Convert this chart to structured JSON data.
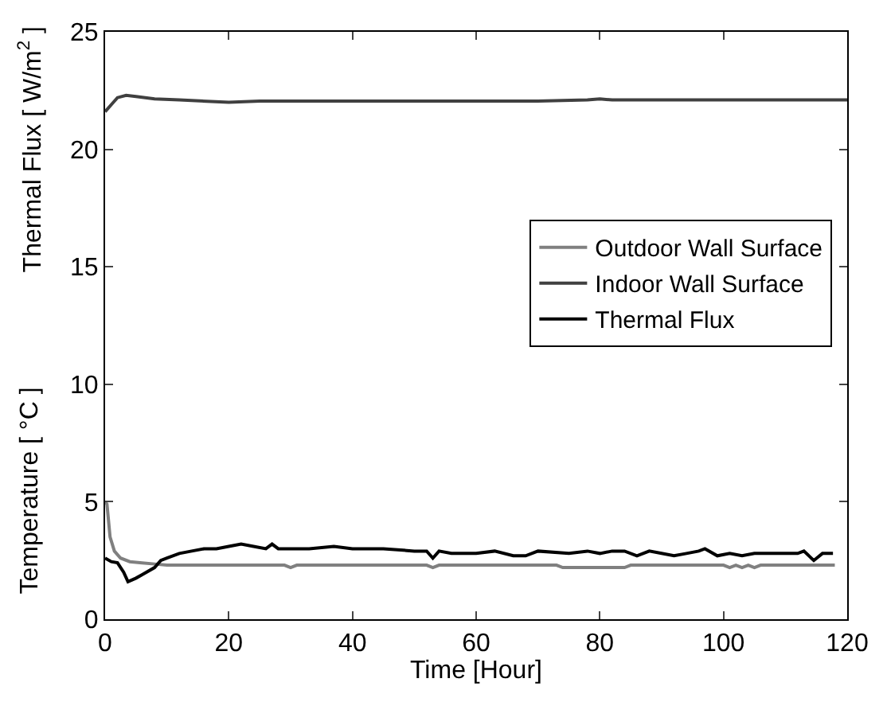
{
  "chart_data": {
    "type": "line",
    "xlabel": "Time [Hour]",
    "ylabel": "Thermal Flux [ W/m$^{2}$ ]",
    "annotations": [
      "Temperature [ °C ]"
    ],
    "xlim": [
      0,
      120
    ],
    "xticks": [
      0,
      20,
      40,
      60,
      80,
      100,
      120
    ],
    "ylim": [
      0,
      25
    ],
    "yticks": [
      0,
      5,
      10,
      15,
      20,
      25
    ],
    "legend": "right",
    "line_style": "solid",
    "marker": "none",
    "series": [
      {
        "name": "Outdoor Wall Surface",
        "color": "#808080",
        "x": [
          0,
          0.3,
          0.8,
          1.5,
          2.5,
          4,
          6,
          8,
          10,
          29,
          30,
          31,
          52,
          53,
          54,
          73,
          74,
          84,
          85,
          100,
          101,
          102,
          103,
          104,
          105,
          106,
          118
        ],
        "values": [
          5.0,
          4.9,
          3.5,
          2.9,
          2.6,
          2.45,
          2.4,
          2.35,
          2.3,
          2.3,
          2.2,
          2.3,
          2.3,
          2.2,
          2.3,
          2.3,
          2.2,
          2.2,
          2.3,
          2.3,
          2.2,
          2.3,
          2.2,
          2.3,
          2.2,
          2.3,
          2.3
        ]
      },
      {
        "name": "Indoor Wall Surface",
        "color": "#404040",
        "x": [
          0,
          1,
          2,
          3.4,
          5,
          8,
          12,
          20,
          25,
          30,
          40,
          50,
          60,
          70,
          78,
          80,
          82,
          90,
          100,
          110,
          120
        ],
        "values": [
          21.6,
          21.9,
          22.2,
          22.3,
          22.25,
          22.15,
          22.1,
          22.0,
          22.05,
          22.05,
          22.05,
          22.05,
          22.05,
          22.05,
          22.1,
          22.15,
          22.1,
          22.1,
          22.1,
          22.1,
          22.1
        ]
      },
      {
        "name": "Thermal Flux",
        "color": "#000000",
        "x": [
          0,
          1,
          2,
          3,
          3.7,
          5,
          6,
          8,
          9,
          10,
          12,
          14,
          16,
          18,
          20,
          22,
          24,
          26,
          27,
          28,
          30,
          33,
          37,
          40,
          45,
          50,
          52,
          53,
          54,
          56,
          60,
          63,
          66,
          68,
          70,
          75,
          78,
          80,
          82,
          84,
          86,
          88,
          90,
          92,
          94,
          96,
          97,
          99,
          101,
          103,
          105,
          107,
          110,
          112,
          113,
          114.6,
          116,
          117.7
        ],
        "values": [
          2.6,
          2.45,
          2.4,
          2.0,
          1.6,
          1.75,
          1.9,
          2.2,
          2.5,
          2.6,
          2.8,
          2.9,
          3.0,
          3.0,
          3.1,
          3.2,
          3.1,
          3.0,
          3.2,
          3.0,
          3.0,
          3.0,
          3.1,
          3.0,
          3.0,
          2.9,
          2.9,
          2.6,
          2.9,
          2.8,
          2.8,
          2.9,
          2.7,
          2.7,
          2.9,
          2.8,
          2.9,
          2.8,
          2.9,
          2.9,
          2.7,
          2.9,
          2.8,
          2.7,
          2.8,
          2.9,
          3.0,
          2.7,
          2.8,
          2.7,
          2.8,
          2.8,
          2.8,
          2.8,
          2.9,
          2.5,
          2.8,
          2.8
        ]
      }
    ]
  }
}
